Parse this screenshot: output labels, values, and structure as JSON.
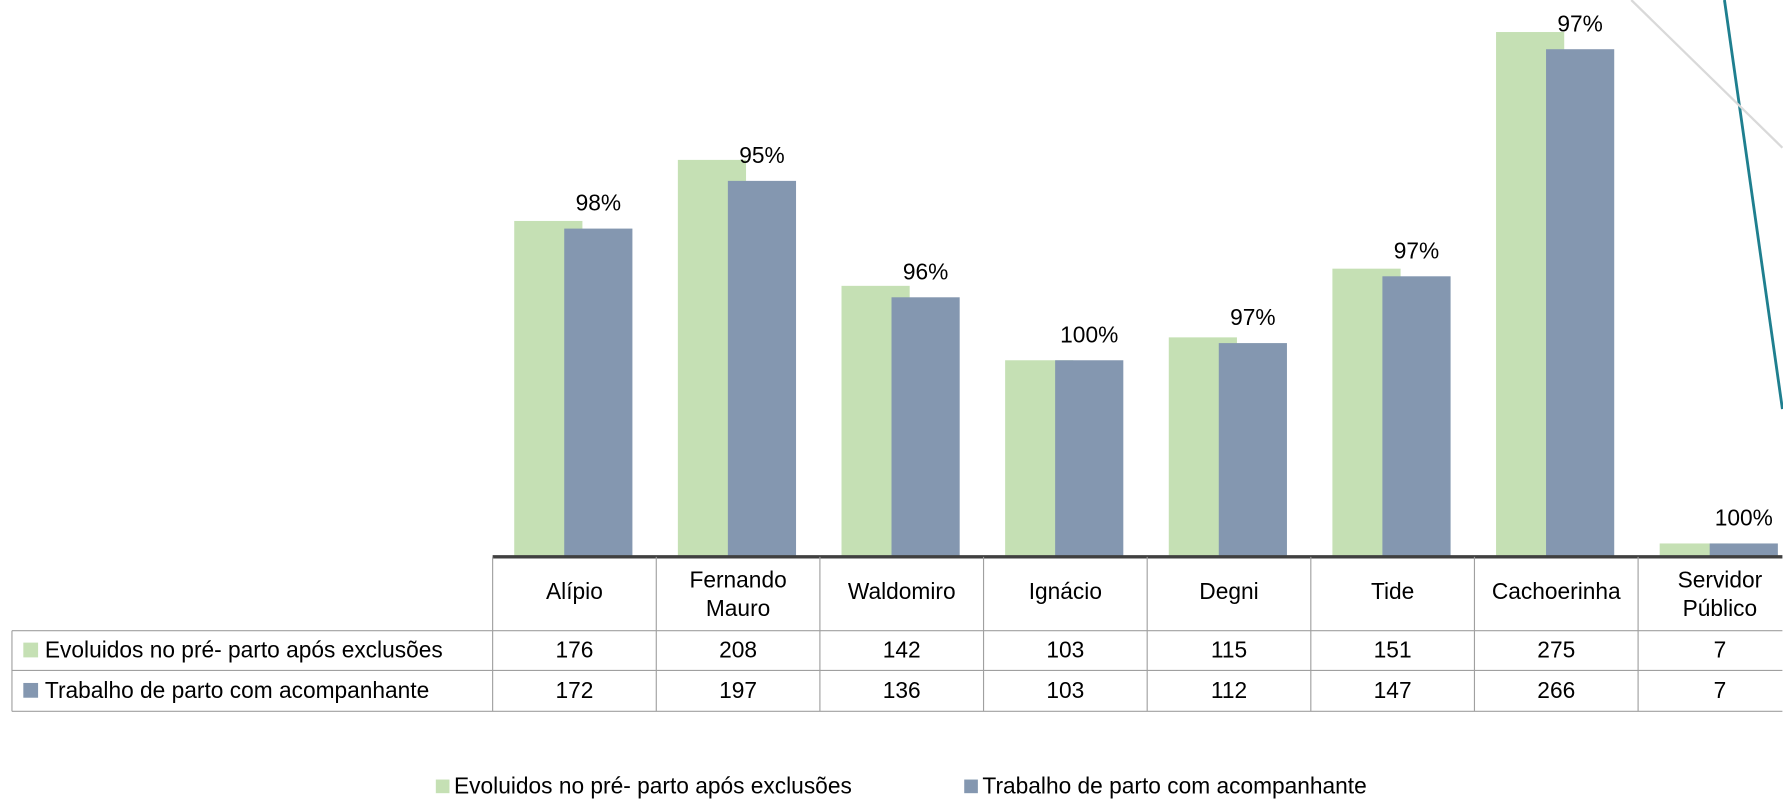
{
  "chart_data": {
    "type": "bar",
    "categories": [
      "Alípio",
      "Fernando Mauro",
      "Waldomiro",
      "Ignácio",
      "Degni",
      "Tide",
      "Cachoerinha",
      "Servidor Público"
    ],
    "series": [
      {
        "name": "Evoluidos no pré- parto após exclusões",
        "color": "#c5e0b4",
        "values": [
          176,
          208,
          142,
          103,
          115,
          151,
          275,
          7
        ]
      },
      {
        "name": "Trabalho de parto com acompanhante",
        "color": "#8497b0",
        "values": [
          172,
          197,
          136,
          103,
          112,
          147,
          266,
          7
        ]
      }
    ],
    "percent_labels": [
      "98%",
      "95%",
      "96%",
      "100%",
      "97%",
      "97%",
      "97%",
      "100%"
    ],
    "ylim": [
      0,
      290
    ],
    "legend": "bottom"
  }
}
